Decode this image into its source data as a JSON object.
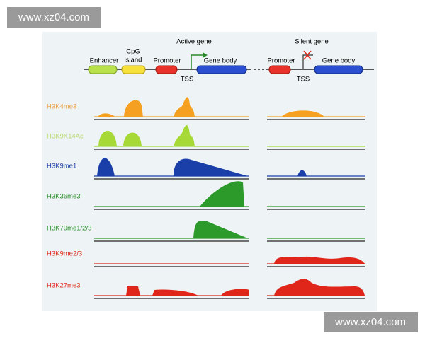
{
  "watermarks": [
    "www.xz04.com",
    "www.xz04.com"
  ],
  "gene_diagram": {
    "active": {
      "enhancer": "Enhancer",
      "cpg_island": [
        "CpG",
        "island"
      ],
      "promoter": "Promoter",
      "label": "Active gene",
      "gene_body": "Gene body",
      "tss": "TSS"
    },
    "silent": {
      "promoter": "Promoter",
      "label": "Silent gene",
      "gene_body": "Gene body",
      "tss": "TSS"
    }
  },
  "tracks": [
    "H3K4me3",
    "H3K9K14Ac",
    "H3K9me1",
    "H3K36me3",
    "H3K79me1/2/3",
    "H3K9me2/3",
    "H3K27me3"
  ]
}
